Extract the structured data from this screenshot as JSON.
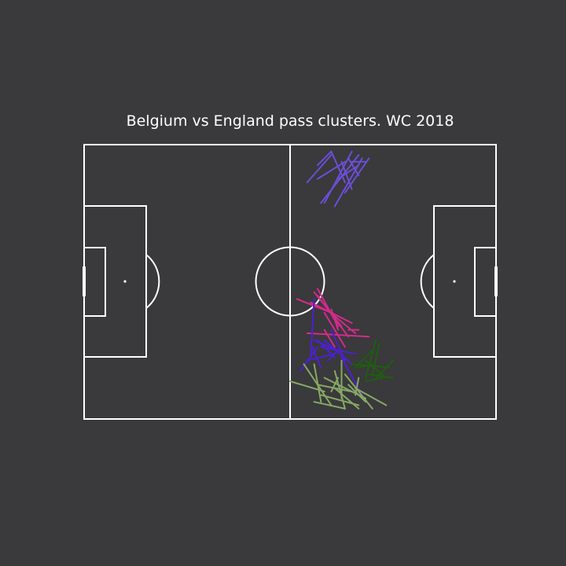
{
  "title": "Belgium vs England pass clusters. WC 2018",
  "colors": {
    "background": "#3a393b",
    "pitch_lines": "#ffffff",
    "title": "#ffffff"
  },
  "pitch": {
    "length": 120,
    "width": 80,
    "lines": "white",
    "show_center_spot": true,
    "show_penalty_spots": true
  },
  "chart_data": {
    "type": "pass-map",
    "x_range": [
      0,
      120
    ],
    "y_range": [
      0,
      80
    ],
    "clusters": [
      {
        "color": "#6b4fd8",
        "passes": [
          [
            65,
            69,
            72,
            77
          ],
          [
            68,
            74,
            72,
            78
          ],
          [
            72,
            78,
            76,
            69
          ],
          [
            78,
            78,
            70,
            63
          ],
          [
            77,
            76,
            80,
            71
          ],
          [
            76,
            75,
            68,
            70
          ],
          [
            83,
            76,
            76,
            66
          ],
          [
            81,
            76,
            73,
            62
          ],
          [
            75,
            75,
            78,
            67
          ],
          [
            69,
            63,
            80,
            77
          ],
          [
            78,
            75,
            82,
            75
          ],
          [
            74,
            70,
            80,
            74
          ]
        ]
      },
      {
        "color": "#d42a8e",
        "passes": [
          [
            62,
            35,
            72,
            31
          ],
          [
            68,
            36,
            77,
            24
          ],
          [
            67,
            37,
            75,
            27
          ],
          [
            70,
            31,
            76,
            21
          ],
          [
            72,
            32,
            74,
            26
          ],
          [
            78,
            28,
            66,
            34
          ],
          [
            83,
            24,
            65,
            25
          ],
          [
            73,
            21,
            70,
            26
          ],
          [
            77,
            26,
            80,
            26
          ],
          [
            79,
            25,
            73,
            30
          ],
          [
            68,
            38,
            74,
            27
          ]
        ]
      },
      {
        "color": "#4d1fd6",
        "passes": [
          [
            67,
            35,
            66,
            18
          ],
          [
            67,
            23,
            74,
            20
          ],
          [
            74,
            20,
            71,
            17
          ],
          [
            72,
            26,
            76,
            17
          ],
          [
            68,
            21,
            63,
            14
          ],
          [
            65,
            17,
            73,
            19
          ],
          [
            66,
            22,
            69,
            15
          ],
          [
            70,
            23,
            78,
            16
          ],
          [
            75,
            18,
            82,
            5
          ],
          [
            69,
            21,
            79,
            19
          ],
          [
            73,
            18,
            68,
            23
          ]
        ]
      },
      {
        "color": "#1e5e10",
        "passes": [
          [
            79,
            15,
            84,
            20
          ],
          [
            82,
            11,
            87,
            12
          ],
          [
            85,
            23,
            82,
            12
          ],
          [
            86,
            22,
            84,
            13
          ],
          [
            85,
            12,
            90,
            17
          ],
          [
            78,
            16,
            89,
            15
          ],
          [
            82,
            17,
            88,
            12
          ],
          [
            83,
            13,
            90,
            12
          ],
          [
            84,
            16,
            80,
            15
          ]
        ]
      },
      {
        "color": "#86a866",
        "passes": [
          [
            64,
            16,
            72,
            4
          ],
          [
            67,
            16,
            69,
            5
          ],
          [
            60,
            11,
            70,
            8
          ],
          [
            68,
            10,
            78,
            8
          ],
          [
            73,
            14,
            76,
            3
          ],
          [
            75,
            17,
            75,
            6
          ],
          [
            76,
            13,
            84,
            3
          ],
          [
            74,
            12,
            72,
            8
          ],
          [
            70,
            12,
            82,
            6
          ],
          [
            77,
            10,
            82,
            5
          ],
          [
            79,
            9,
            88,
            4
          ],
          [
            67,
            5,
            76,
            3
          ],
          [
            69,
            7,
            80,
            4
          ],
          [
            73,
            9,
            80,
            3
          ],
          [
            80,
            12,
            79,
            7
          ]
        ]
      }
    ]
  }
}
